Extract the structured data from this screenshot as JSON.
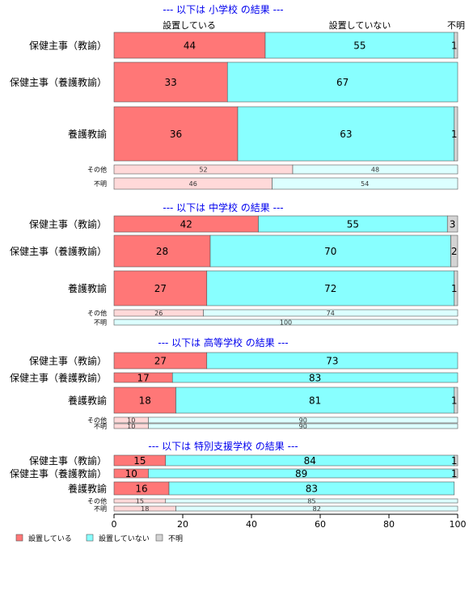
{
  "colors": {
    "yes": "#ff7777",
    "no": "#88ffff",
    "unknown": "#d3d3d3",
    "yes_light": "#ffd9d9",
    "no_light": "#dcffff",
    "section_title": "#0000ee"
  },
  "header_labels": {
    "yes": "設置している",
    "no": "設置していない",
    "unknown": "不明"
  },
  "legend": [
    {
      "key": "yes",
      "label": "設置している"
    },
    {
      "key": "no",
      "label": "設置していない"
    },
    {
      "key": "unknown",
      "label": "不明"
    }
  ],
  "chart_data": {
    "type": "bar",
    "orientation": "horizontal-stacked-100",
    "xlim": [
      0,
      100
    ],
    "xticks": [
      0,
      20,
      40,
      60,
      80,
      100
    ],
    "series_names": [
      "設置している",
      "設置していない",
      "不明"
    ],
    "sections": [
      {
        "title": "--- 以下は 小学校 の結果 ---",
        "rows": [
          {
            "label": "保健主事（教諭）",
            "values": [
              44,
              55,
              1
            ]
          },
          {
            "label": "保健主事（養護教諭）",
            "values": [
              33,
              67,
              0
            ]
          },
          {
            "label": "養護教諭",
            "values": [
              36,
              63,
              1
            ]
          },
          {
            "label": "その他",
            "values": [
              52,
              48,
              0
            ]
          },
          {
            "label": "不明",
            "values": [
              46,
              54,
              0
            ]
          }
        ]
      },
      {
        "title": "--- 以下は 中学校 の結果 ---",
        "rows": [
          {
            "label": "保健主事（教諭）",
            "values": [
              42,
              55,
              3
            ]
          },
          {
            "label": "保健主事（養護教諭）",
            "values": [
              28,
              70,
              2
            ]
          },
          {
            "label": "養護教諭",
            "values": [
              27,
              72,
              1
            ]
          },
          {
            "label": "その他",
            "values": [
              26,
              74,
              0
            ]
          },
          {
            "label": "不明",
            "values": [
              0,
              100,
              0
            ]
          }
        ]
      },
      {
        "title": "--- 以下は 高等学校 の結果 ---",
        "rows": [
          {
            "label": "保健主事（教諭）",
            "values": [
              27,
              73,
              0
            ]
          },
          {
            "label": "保健主事（養護教諭）",
            "values": [
              17,
              83,
              0
            ]
          },
          {
            "label": "養護教諭",
            "values": [
              18,
              81,
              1
            ]
          },
          {
            "label": "その他",
            "values": [
              10,
              90,
              0
            ]
          },
          {
            "label": "不明",
            "values": [
              10,
              90,
              0
            ]
          }
        ]
      },
      {
        "title": "--- 以下は 特別支援学校 の結果 ---",
        "rows": [
          {
            "label": "保健主事（教諭）",
            "values": [
              15,
              84,
              1
            ]
          },
          {
            "label": "保健主事（養護教諭）",
            "values": [
              10,
              89,
              1
            ]
          },
          {
            "label": "養護教諭",
            "values": [
              16,
              83,
              0
            ]
          },
          {
            "label": "その他",
            "values": [
              15,
              85,
              0
            ]
          },
          {
            "label": "不明",
            "values": [
              18,
              82,
              0
            ]
          }
        ]
      }
    ]
  }
}
